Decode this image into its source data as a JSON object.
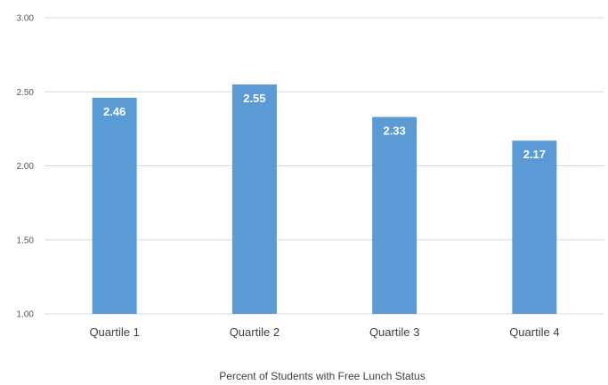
{
  "chart_data": {
    "type": "bar",
    "title": "",
    "xlabel": "Percent of Students with Free Lunch Status",
    "ylabel": "",
    "categories": [
      "Quartile 1",
      "Quartile 2",
      "Quartile 3",
      "Quartile 4"
    ],
    "values": [
      2.46,
      2.55,
      2.33,
      2.17
    ],
    "data_labels": [
      "2.46",
      "2.55",
      "2.33",
      "2.17"
    ],
    "ylim": [
      1.0,
      3.0
    ],
    "y_ticks": [
      "1.00",
      "1.50",
      "2.00",
      "2.50",
      "3.00"
    ],
    "y_tick_values": [
      1.0,
      1.5,
      2.0,
      2.5,
      3.0
    ],
    "grid": true,
    "legend": "none",
    "colors": {
      "bar": "#5B9BD5",
      "grid": "#D9D9D9",
      "axis": "#D9D9D9"
    }
  }
}
